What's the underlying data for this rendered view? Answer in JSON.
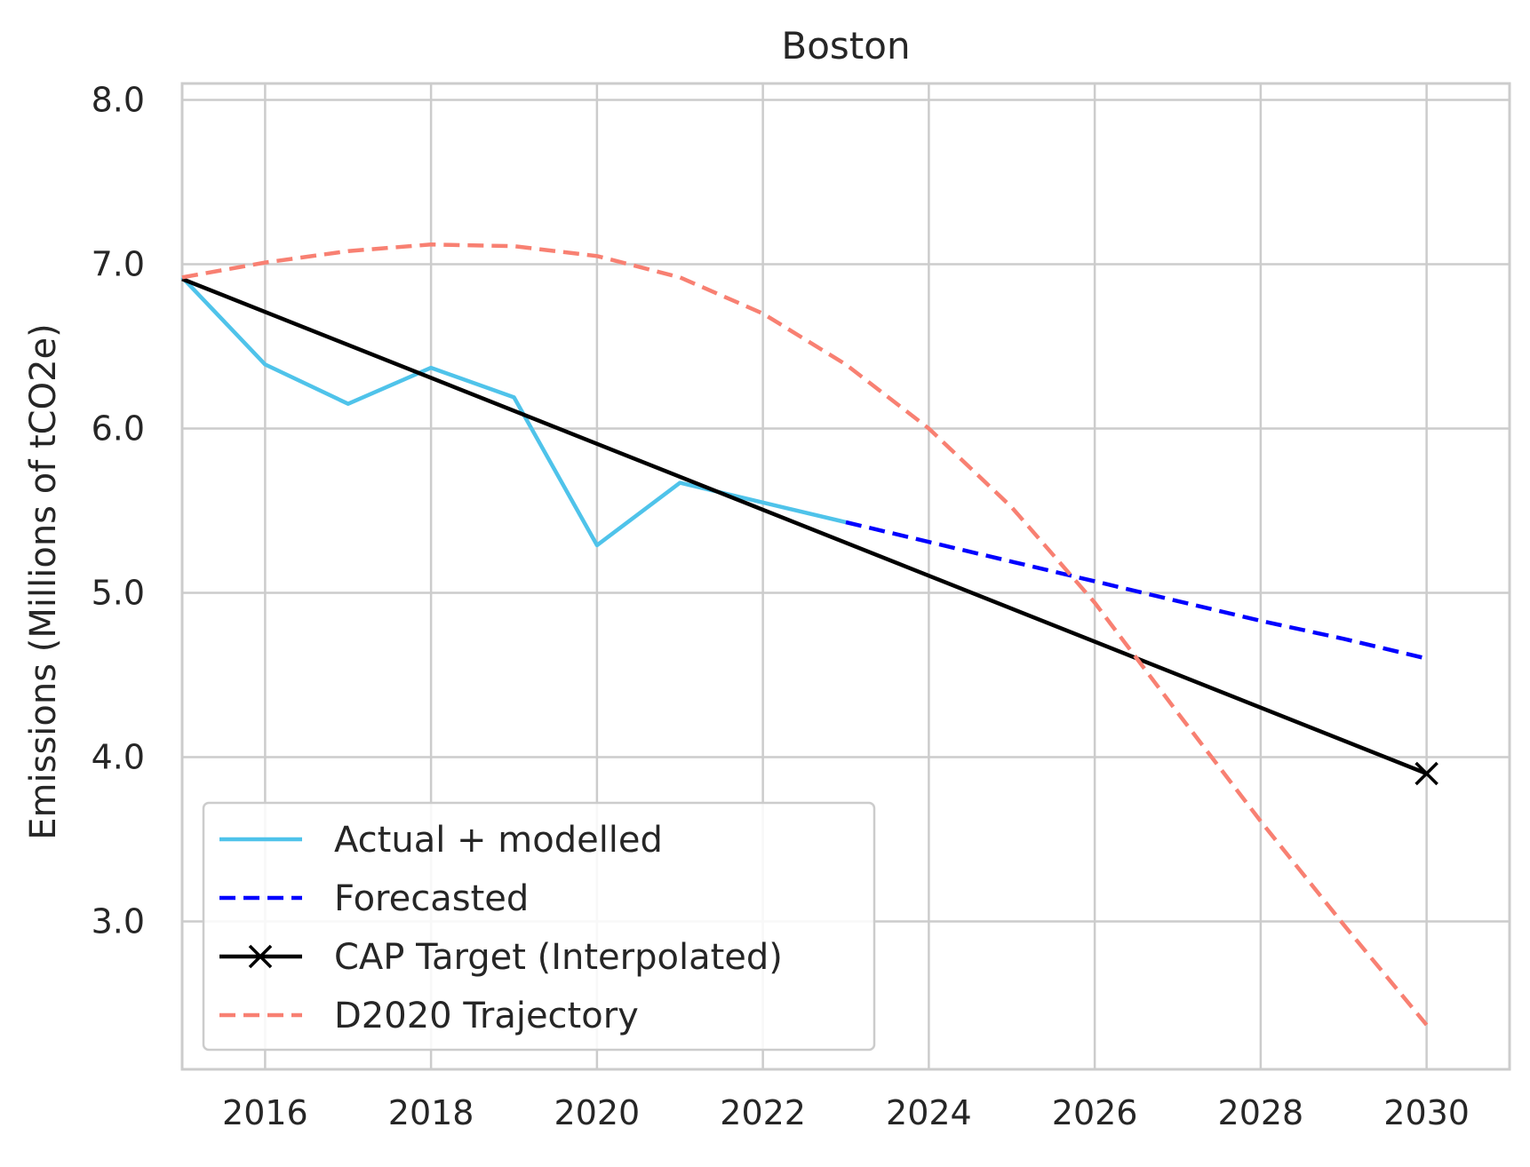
{
  "chart_data": {
    "type": "line",
    "title": "Boston",
    "xlabel": "",
    "ylabel": "Emissions (Millions of tCO2e)",
    "xlim": [
      2015,
      2031
    ],
    "ylim": [
      2.1,
      8.1
    ],
    "xticks": [
      2016,
      2018,
      2020,
      2022,
      2024,
      2026,
      2028,
      2030
    ],
    "yticks": [
      3.0,
      4.0,
      5.0,
      6.0,
      7.0,
      8.0
    ],
    "grid": true,
    "legend_position": "lower-left",
    "series": [
      {
        "name": "Actual + modelled",
        "color": "#4fc3ea",
        "style": "solid",
        "marker": "none",
        "x": [
          2015,
          2016,
          2017,
          2018,
          2019,
          2020,
          2021,
          2022,
          2023
        ],
        "y": [
          6.92,
          6.39,
          6.15,
          6.37,
          6.19,
          5.29,
          5.67,
          5.55,
          5.43
        ]
      },
      {
        "name": "Forecasted",
        "color": "#0000ff",
        "style": "dashed",
        "marker": "none",
        "x": [
          2023,
          2024,
          2025,
          2026,
          2027,
          2028,
          2029,
          2030
        ],
        "y": [
          5.43,
          5.31,
          5.19,
          5.07,
          4.95,
          4.83,
          4.72,
          4.6
        ]
      },
      {
        "name": "CAP Target (Interpolated)",
        "color": "#000000",
        "style": "solid",
        "marker": "x-at-end",
        "x": [
          2015,
          2030
        ],
        "y": [
          6.91,
          3.9
        ]
      },
      {
        "name": "D2020 Trajectory",
        "color": "#f88072",
        "style": "dashed",
        "marker": "none",
        "x": [
          2015,
          2016,
          2017,
          2018,
          2019,
          2020,
          2021,
          2022,
          2023,
          2024,
          2025,
          2026,
          2027,
          2028,
          2029,
          2030
        ],
        "y": [
          6.92,
          7.01,
          7.08,
          7.12,
          7.11,
          7.05,
          6.92,
          6.7,
          6.39,
          6.0,
          5.52,
          4.94,
          4.27,
          3.61,
          2.98,
          2.37
        ]
      }
    ]
  }
}
